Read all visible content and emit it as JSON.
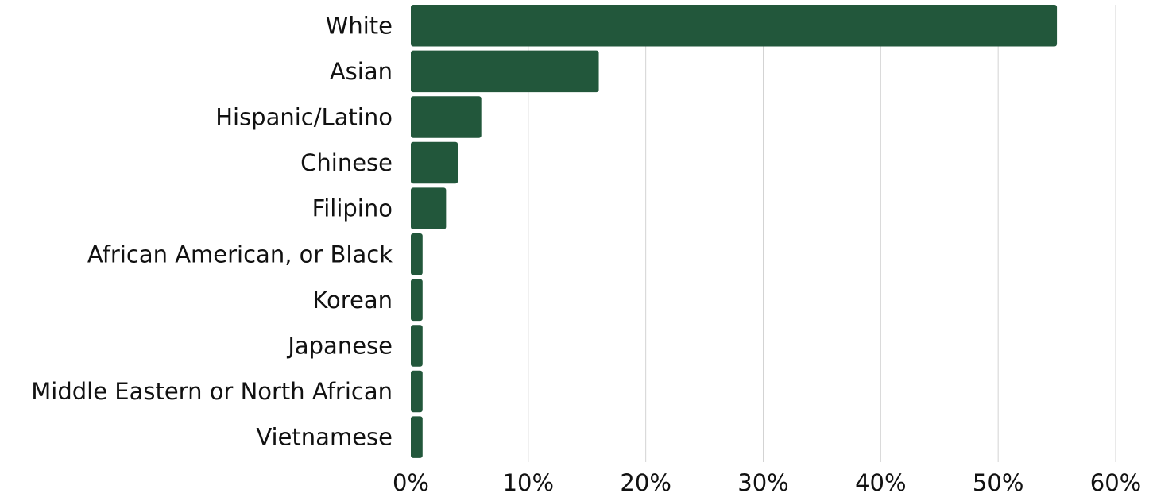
{
  "chart_data": {
    "type": "bar",
    "orientation": "horizontal",
    "categories": [
      "White",
      "Asian",
      "Hispanic/Latino",
      "Chinese",
      "Filipino",
      "African American, or Black",
      "Korean",
      "Japanese",
      "Middle Eastern or North African",
      "Vietnamese"
    ],
    "values": [
      55,
      16,
      6,
      4,
      3,
      1,
      1,
      1,
      1,
      1
    ],
    "xlim": [
      0,
      60
    ],
    "x_ticks": [
      0,
      10,
      20,
      30,
      40,
      50,
      60
    ],
    "x_tick_labels": [
      "0%",
      "10%",
      "20%",
      "30%",
      "40%",
      "50%",
      "60%"
    ],
    "title": "",
    "xlabel": "",
    "ylabel": "",
    "grid": "vertical",
    "legend": "none",
    "bar_color": "#22573b",
    "grid_color": "#d3d3d3"
  }
}
